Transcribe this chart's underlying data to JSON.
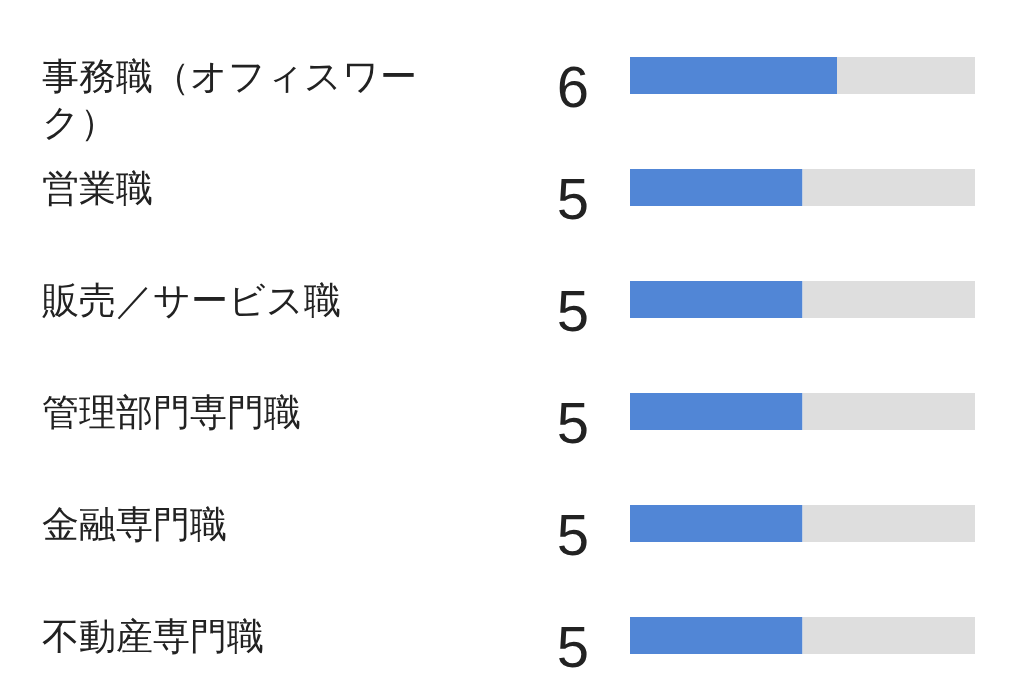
{
  "chart_data": {
    "type": "bar",
    "orientation": "horizontal",
    "stacked": true,
    "categories": [
      "事務職（オフィスワーク）",
      "営業職",
      "販売／サービス職",
      "管理部門専門職",
      "金融専門職",
      "不動産専門職"
    ],
    "series": [
      {
        "color": "#5186d6",
        "values": [
          6,
          5,
          5,
          5,
          5,
          5
        ],
        "value_labels": [
          "6",
          "5",
          "5",
          "5",
          "5",
          "5"
        ]
      },
      {
        "color": "#dedede",
        "values": [
          4,
          5,
          5,
          5,
          5,
          5
        ]
      }
    ],
    "xlim": [
      0,
      10
    ],
    "tick_labels": "y"
  }
}
